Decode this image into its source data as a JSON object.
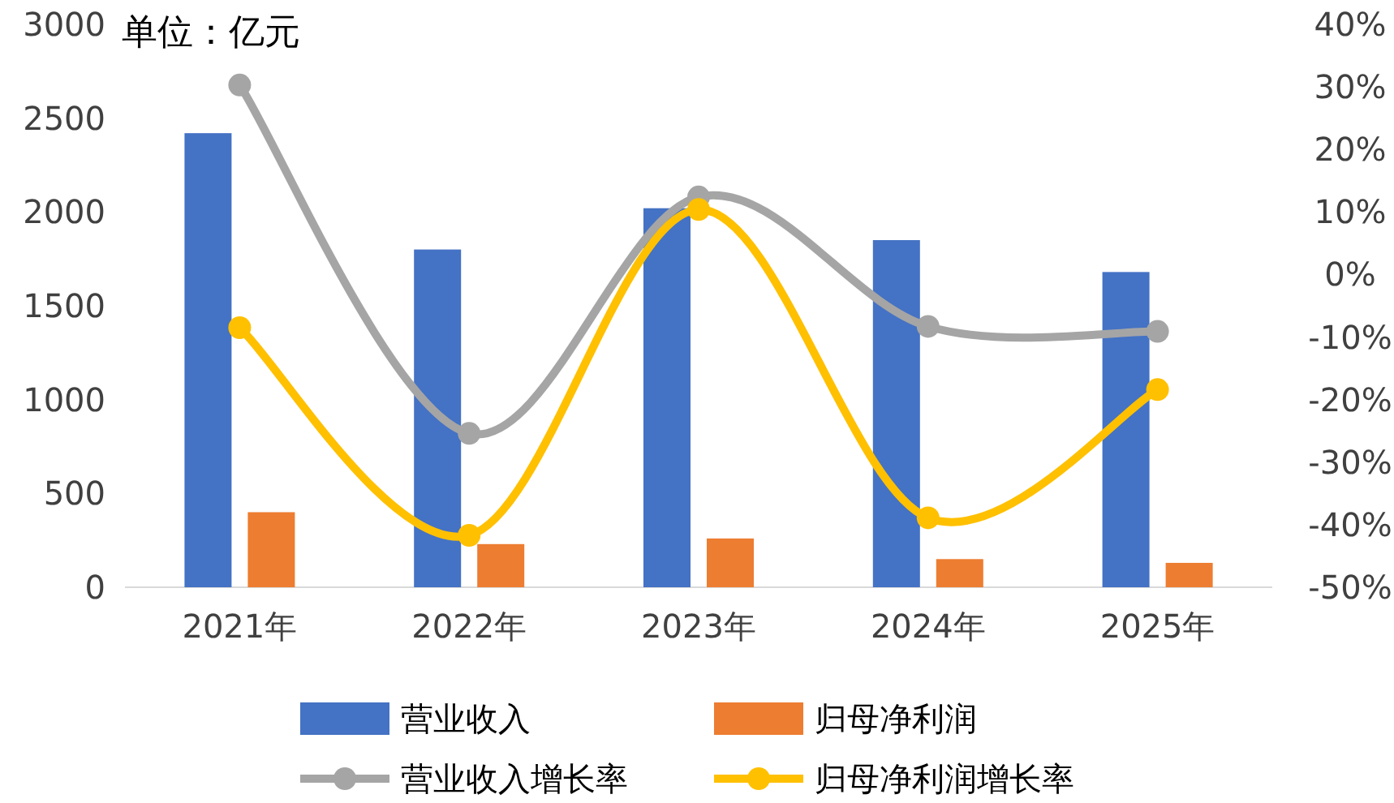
{
  "chart_data": {
    "type": "bar",
    "ylabel": "单位：亿元",
    "categories": [
      "2021年",
      "2022年",
      "2023年",
      "2024年",
      "2025年"
    ],
    "series": [
      {
        "name": "营业收入",
        "color": "#4472c4",
        "values": [
          2420,
          1800,
          2020,
          1850,
          1680
        ]
      },
      {
        "name": "归母净利润",
        "color": "#ed7d31",
        "values": [
          400,
          230,
          260,
          150,
          130
        ]
      },
      {
        "name": "营业收入增长率",
        "type": "line",
        "axis": "y2",
        "color": "#a5a5a5",
        "marker": "circle",
        "values": [
          30.3,
          -25.4,
          12.4,
          -8.3,
          -9.1
        ]
      },
      {
        "name": "归母净利润增长率",
        "type": "line",
        "axis": "y2",
        "color": "#ffc000",
        "marker": "circle",
        "values": [
          -8.5,
          -41.7,
          10.4,
          -38.9,
          -18.4
        ]
      }
    ],
    "ylim": [
      0,
      3000
    ],
    "yticks": [
      0,
      500,
      1000,
      1500,
      2000,
      2500,
      3000
    ],
    "y2lim": [
      -50,
      40
    ],
    "y2ticks": [
      {
        "value": -50,
        "label": "-50%"
      },
      {
        "value": -40,
        "label": "-40%"
      },
      {
        "value": -30,
        "label": "-30%"
      },
      {
        "value": -20,
        "label": "-20%"
      },
      {
        "value": -10,
        "label": "-10%"
      },
      {
        "value": 0,
        "label": "0%"
      },
      {
        "value": 10,
        "label": "10%"
      },
      {
        "value": 20,
        "label": "20%"
      },
      {
        "value": 30,
        "label": "30%"
      },
      {
        "value": 40,
        "label": "40%"
      }
    ],
    "grid": false,
    "legend": "bottom"
  }
}
